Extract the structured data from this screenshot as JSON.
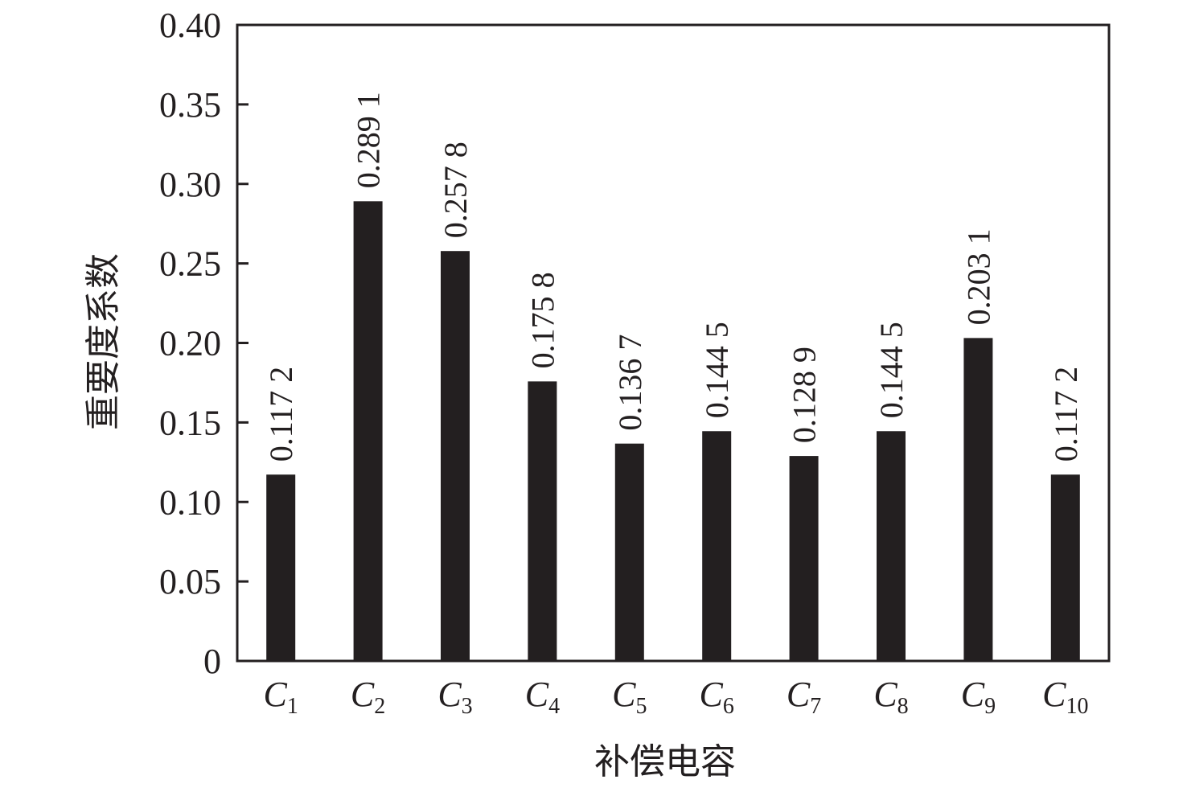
{
  "chart_data": {
    "type": "bar",
    "categories": [
      {
        "main": "C",
        "sub": "1"
      },
      {
        "main": "C",
        "sub": "2"
      },
      {
        "main": "C",
        "sub": "3"
      },
      {
        "main": "C",
        "sub": "4"
      },
      {
        "main": "C",
        "sub": "5"
      },
      {
        "main": "C",
        "sub": "6"
      },
      {
        "main": "C",
        "sub": "7"
      },
      {
        "main": "C",
        "sub": "8"
      },
      {
        "main": "C",
        "sub": "9"
      },
      {
        "main": "C",
        "sub": "10"
      }
    ],
    "values": [
      0.1172,
      0.2891,
      0.2578,
      0.1758,
      0.1367,
      0.1445,
      0.1289,
      0.1445,
      0.2031,
      0.1172
    ],
    "value_labels": [
      "0.117 2",
      "0.289 1",
      "0.257 8",
      "0.175 8",
      "0.136 7",
      "0.144 5",
      "0.128 9",
      "0.144 5",
      "0.203 1",
      "0.117 2"
    ],
    "xlabel": "补偿电容",
    "ylabel": "重要度系数",
    "ylim": [
      0,
      0.4
    ],
    "yticks": [
      0,
      0.05,
      0.1,
      0.15,
      0.2,
      0.25,
      0.3,
      0.35,
      0.4
    ],
    "ytick_labels": [
      "0",
      "0.05",
      "0.10",
      "0.15",
      "0.20",
      "0.25",
      "0.30",
      "0.35",
      "0.40"
    ],
    "grid": false,
    "bar_color": "#231f20",
    "axis_color": "#231f20"
  }
}
